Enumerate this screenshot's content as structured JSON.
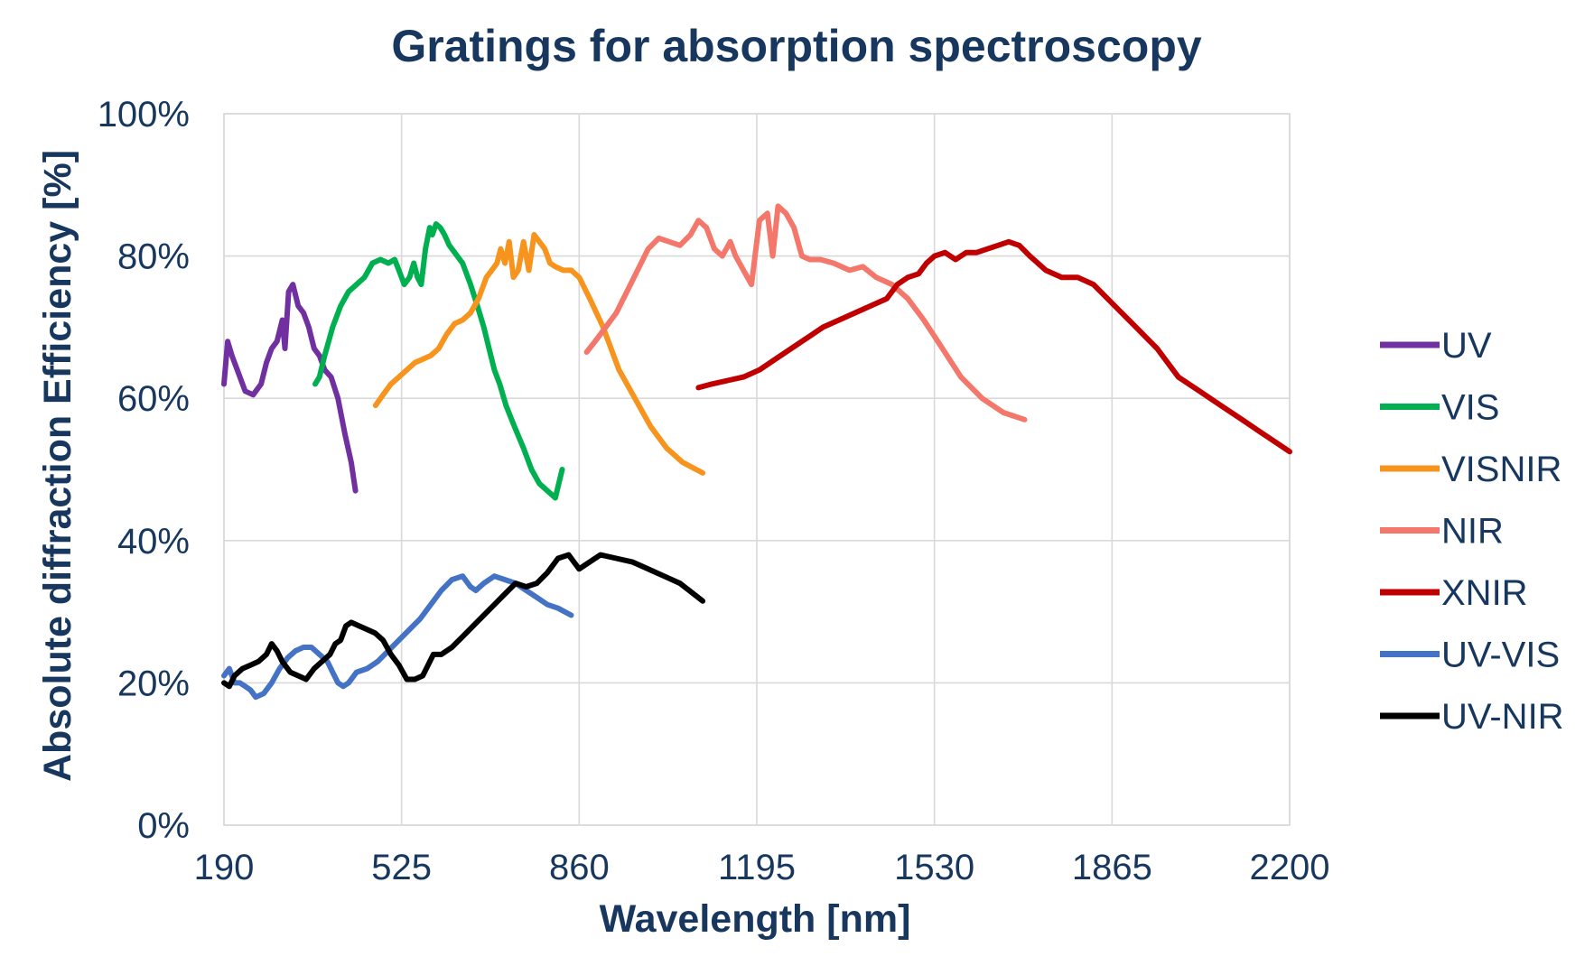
{
  "chart_data": {
    "type": "line",
    "title": "Gratings for absorption spectroscopy",
    "xlabel": "Wavelength [nm]",
    "ylabel": "Absolute diffraction Efficiency  [%]",
    "xlim": [
      190,
      2200
    ],
    "ylim": [
      0,
      100
    ],
    "x_ticks": [
      190,
      525,
      860,
      1195,
      1530,
      1865,
      2200
    ],
    "x_tick_labels": [
      "190",
      "525",
      "860",
      "1195",
      "1530",
      "1865",
      "2200"
    ],
    "y_ticks": [
      0,
      20,
      40,
      60,
      80,
      100
    ],
    "y_tick_labels": [
      "0%",
      "20%",
      "40%",
      "60%",
      "80%",
      "100%"
    ],
    "grid": true,
    "legend_position": "right",
    "series": [
      {
        "name": "UV",
        "color": "#7030a0",
        "x": [
          190,
          197,
          205,
          215,
          230,
          245,
          260,
          270,
          280,
          290,
          300,
          305,
          312,
          320,
          330,
          340,
          350,
          360,
          370,
          380,
          392,
          405,
          418,
          430,
          438
        ],
        "y": [
          62,
          68,
          66,
          64,
          61,
          60.5,
          62,
          65,
          67,
          68,
          71,
          67,
          75,
          76,
          73,
          72,
          70,
          67,
          66,
          64,
          63,
          60,
          55,
          51,
          47
        ]
      },
      {
        "name": "VIS",
        "color": "#00b050",
        "x": [
          362,
          370,
          380,
          395,
          410,
          425,
          440,
          455,
          470,
          485,
          500,
          512,
          520,
          530,
          540,
          548,
          555,
          562,
          570,
          578,
          583,
          590,
          598,
          606,
          615,
          625,
          640,
          655,
          668,
          680,
          690,
          700,
          710,
          722,
          738,
          755,
          770,
          785,
          800,
          815,
          828
        ],
        "y": [
          62,
          63,
          66,
          70,
          73,
          75,
          76,
          77,
          79,
          79.5,
          79,
          79.5,
          78,
          76,
          77,
          79,
          77,
          76,
          81,
          84,
          83,
          84.5,
          84,
          83,
          81.5,
          80.5,
          79,
          76,
          73,
          70,
          67,
          64,
          62,
          59,
          56,
          53,
          50,
          48,
          47,
          46,
          50
        ]
      },
      {
        "name": "VISNIR",
        "color": "#f7941d",
        "x": [
          476,
          490,
          505,
          520,
          535,
          550,
          565,
          580,
          595,
          610,
          625,
          640,
          655,
          670,
          685,
          695,
          705,
          712,
          720,
          728,
          736,
          745,
          755,
          765,
          775,
          785,
          795,
          805,
          815,
          830,
          845,
          860,
          880,
          905,
          935,
          965,
          995,
          1025,
          1055,
          1093
        ],
        "y": [
          59,
          60.5,
          62,
          63,
          64,
          65,
          65.5,
          66,
          67,
          69,
          70.5,
          71,
          72,
          74,
          77,
          78,
          79,
          81,
          79,
          82,
          77,
          78,
          82,
          78,
          83,
          82,
          81,
          79,
          78.5,
          78,
          78,
          77,
          74,
          70,
          64,
          60,
          56,
          53,
          51,
          49.5
        ]
      },
      {
        "name": "NIR",
        "color": "#f4776b",
        "x": [
          874,
          890,
          910,
          930,
          950,
          970,
          990,
          1010,
          1030,
          1050,
          1070,
          1085,
          1100,
          1115,
          1130,
          1145,
          1155,
          1170,
          1185,
          1200,
          1215,
          1225,
          1235,
          1250,
          1265,
          1280,
          1295,
          1315,
          1340,
          1370,
          1395,
          1420,
          1450,
          1480,
          1510,
          1545,
          1580,
          1620,
          1660,
          1700
        ],
        "y": [
          66.5,
          68,
          70,
          72,
          75,
          78,
          81,
          82.5,
          82,
          81.5,
          83,
          85,
          84,
          81,
          80,
          82,
          80,
          78,
          76,
          85,
          86,
          80,
          87,
          86,
          84,
          80,
          79.5,
          79.5,
          79,
          78,
          78.5,
          77,
          76,
          74,
          71,
          67,
          63,
          60,
          58,
          57
        ]
      },
      {
        "name": "XNIR",
        "color": "#c00000",
        "x": [
          1085,
          1110,
          1140,
          1170,
          1200,
          1230,
          1260,
          1290,
          1320,
          1350,
          1380,
          1410,
          1440,
          1460,
          1480,
          1500,
          1515,
          1530,
          1550,
          1570,
          1590,
          1610,
          1630,
          1650,
          1670,
          1690,
          1710,
          1740,
          1770,
          1800,
          1830,
          1870,
          1910,
          1950,
          1990,
          2030,
          2070,
          2110,
          2150,
          2200
        ],
        "y": [
          61.5,
          62,
          62.5,
          63,
          64,
          65.5,
          67,
          68.5,
          70,
          71,
          72,
          73,
          74,
          76,
          77,
          77.5,
          79,
          80,
          80.5,
          79.5,
          80.5,
          80.5,
          81,
          81.5,
          82,
          81.5,
          80,
          78,
          77,
          77,
          76,
          73,
          70,
          67,
          63,
          61,
          59,
          57,
          55,
          52.5
        ]
      },
      {
        "name": "UV-VIS",
        "color": "#4472c4",
        "x": [
          190,
          200,
          210,
          220,
          230,
          240,
          250,
          265,
          280,
          295,
          310,
          325,
          340,
          355,
          370,
          385,
          395,
          405,
          415,
          425,
          440,
          460,
          480,
          500,
          520,
          540,
          560,
          580,
          600,
          620,
          640,
          655,
          665,
          680,
          700,
          720,
          740,
          760,
          780,
          800,
          820,
          845
        ],
        "y": [
          21,
          22,
          20,
          20,
          19.5,
          19,
          18,
          18.5,
          20,
          22,
          23.5,
          24.5,
          25,
          25,
          24,
          23,
          21.5,
          20,
          19.5,
          20,
          21.5,
          22,
          23,
          24.5,
          26,
          27.5,
          29,
          31,
          33,
          34.5,
          35,
          33.5,
          33,
          34,
          35,
          34.5,
          34,
          33,
          32,
          31,
          30.5,
          29.5
        ]
      },
      {
        "name": "UV-NIR",
        "color": "#000000",
        "x": [
          190,
          200,
          210,
          225,
          240,
          255,
          270,
          280,
          290,
          300,
          315,
          330,
          345,
          360,
          375,
          390,
          400,
          410,
          420,
          430,
          445,
          460,
          475,
          490,
          505,
          520,
          535,
          550,
          565,
          575,
          585,
          600,
          620,
          640,
          660,
          680,
          700,
          720,
          740,
          760,
          780,
          800,
          820,
          840,
          860,
          880,
          900,
          930,
          960,
          990,
          1020,
          1050,
          1093
        ],
        "y": [
          20,
          19.5,
          21,
          22,
          22.5,
          23,
          24,
          25.5,
          24.5,
          23,
          21.5,
          21,
          20.5,
          22,
          23,
          24,
          25.5,
          26,
          28,
          28.5,
          28,
          27.5,
          27,
          26,
          24,
          22.5,
          20.5,
          20.5,
          21,
          22.5,
          24,
          24,
          25,
          26.5,
          28,
          29.5,
          31,
          32.5,
          34,
          33.5,
          34,
          35.5,
          37.5,
          38,
          36,
          37,
          38,
          37.5,
          37,
          36,
          35,
          34,
          31.5
        ]
      }
    ]
  }
}
